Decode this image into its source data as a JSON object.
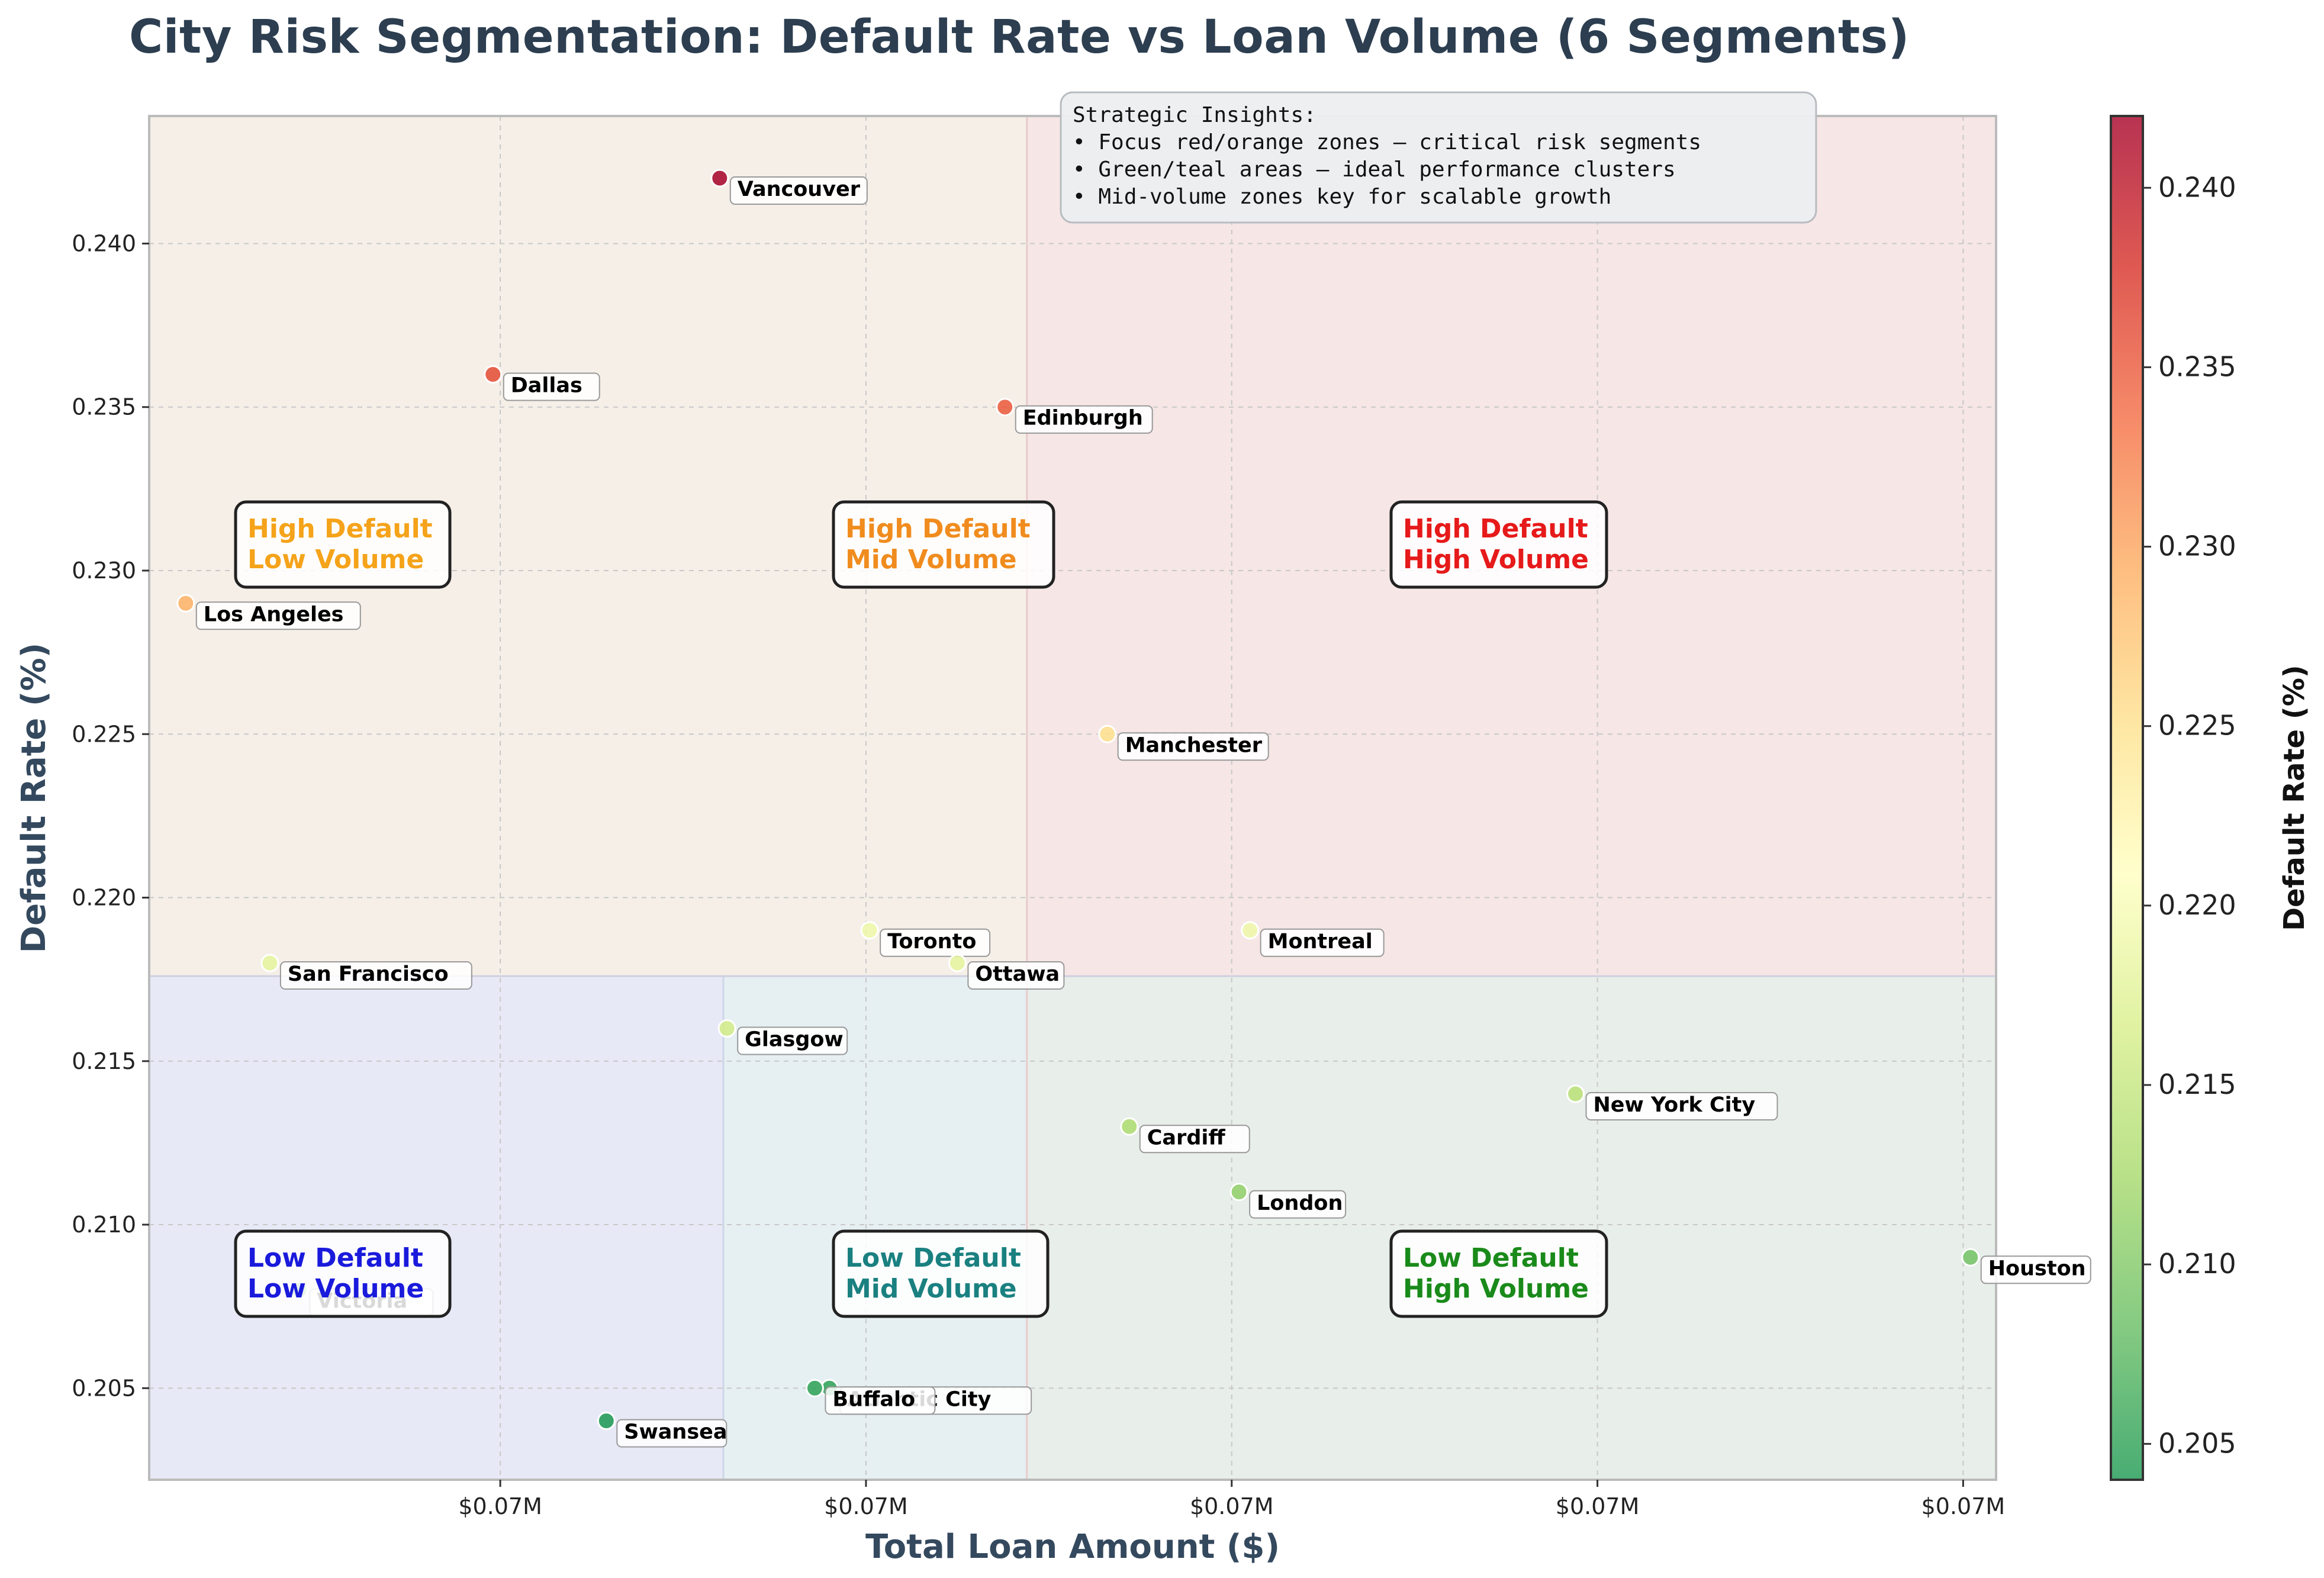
{
  "title": "City Risk Segmentation: Default Rate vs Loan Volume (6 Segments)",
  "insights": {
    "heading": "Strategic Insights:",
    "lines": [
      "• Focus red/orange zones – critical risk segments",
      "• Green/teal areas – ideal performance clusters",
      "• Mid-volume zones key for scalable growth"
    ]
  },
  "segments": [
    {
      "label": [
        "High Default",
        "Low Volume"
      ],
      "color": "#f5a31a"
    },
    {
      "label": [
        "High Default",
        "Mid Volume"
      ],
      "color": "#f08c1e"
    },
    {
      "label": [
        "High Default",
        "High Volume"
      ],
      "color": "#e61a1a"
    },
    {
      "label": [
        "Low Default",
        "Low Volume"
      ],
      "color": "#1a1adc"
    },
    {
      "label": [
        "Low Default",
        "Mid Volume"
      ],
      "color": "#1a8080"
    },
    {
      "label": [
        "Low Default",
        "High Volume"
      ],
      "color": "#1a8a1a"
    }
  ],
  "colorbar": {
    "label": "Default Rate (%)",
    "ticks": [
      "0.205",
      "0.210",
      "0.215",
      "0.220",
      "0.225",
      "0.230",
      "0.235",
      "0.240"
    ],
    "range": [
      0.204,
      0.242
    ],
    "colors": [
      "#1a9850",
      "#66bd63",
      "#a6d96a",
      "#d9ef8b",
      "#ffffbf",
      "#fee08b",
      "#fdae61",
      "#f46d43",
      "#d73027",
      "#a50026"
    ]
  },
  "chart_data": {
    "type": "scatter",
    "title": "City Risk Segmentation: Default Rate vs Loan Volume (6 Segments)",
    "xlabel": "Total Loan Amount ($)",
    "ylabel": "Default Rate (%)",
    "x_tick_labels": [
      "$0.07M",
      "$0.07M",
      "$0.07M",
      "$0.07M",
      "$0.07M"
    ],
    "x_ticks": [
      66020,
      66120,
      66220,
      66320,
      66420
    ],
    "y_ticks": [
      0.205,
      0.21,
      0.215,
      0.22,
      0.225,
      0.23,
      0.235,
      0.24
    ],
    "y_tick_labels": [
      "0.205",
      "0.210",
      "0.215",
      "0.220",
      "0.225",
      "0.230",
      "0.235",
      "0.240"
    ],
    "xlim": [
      65924,
      66429
    ],
    "ylim": [
      0.2022,
      0.2439
    ],
    "thresholds": {
      "x_low": 66081,
      "x_high": 66164,
      "y": 0.2176
    },
    "grid": true,
    "points": [
      {
        "city": "Vancouver",
        "x": 66080,
        "y": 0.242
      },
      {
        "city": "Dallas",
        "x": 66018,
        "y": 0.236
      },
      {
        "city": "Edinburgh",
        "x": 66158,
        "y": 0.235
      },
      {
        "city": "Los Angeles",
        "x": 65934,
        "y": 0.229
      },
      {
        "city": "Manchester",
        "x": 66186,
        "y": 0.225
      },
      {
        "city": "Toronto",
        "x": 66121,
        "y": 0.219
      },
      {
        "city": "Montreal",
        "x": 66225,
        "y": 0.219
      },
      {
        "city": "San Francisco",
        "x": 65957,
        "y": 0.218
      },
      {
        "city": "Ottawa",
        "x": 66145,
        "y": 0.218
      },
      {
        "city": "Glasgow",
        "x": 66082,
        "y": 0.216
      },
      {
        "city": "New York City",
        "x": 66314,
        "y": 0.214
      },
      {
        "city": "Cardiff",
        "x": 66192,
        "y": 0.213
      },
      {
        "city": "London",
        "x": 66222,
        "y": 0.211
      },
      {
        "city": "Houston",
        "x": 66422,
        "y": 0.209
      },
      {
        "city": "Victoria",
        "x": 65965,
        "y": 0.208
      },
      {
        "city": "Atlantic City",
        "x": 66110,
        "y": 0.205
      },
      {
        "city": "Buffalo",
        "x": 66106,
        "y": 0.205
      },
      {
        "city": "Swansea",
        "x": 66049,
        "y": 0.204
      }
    ]
  }
}
